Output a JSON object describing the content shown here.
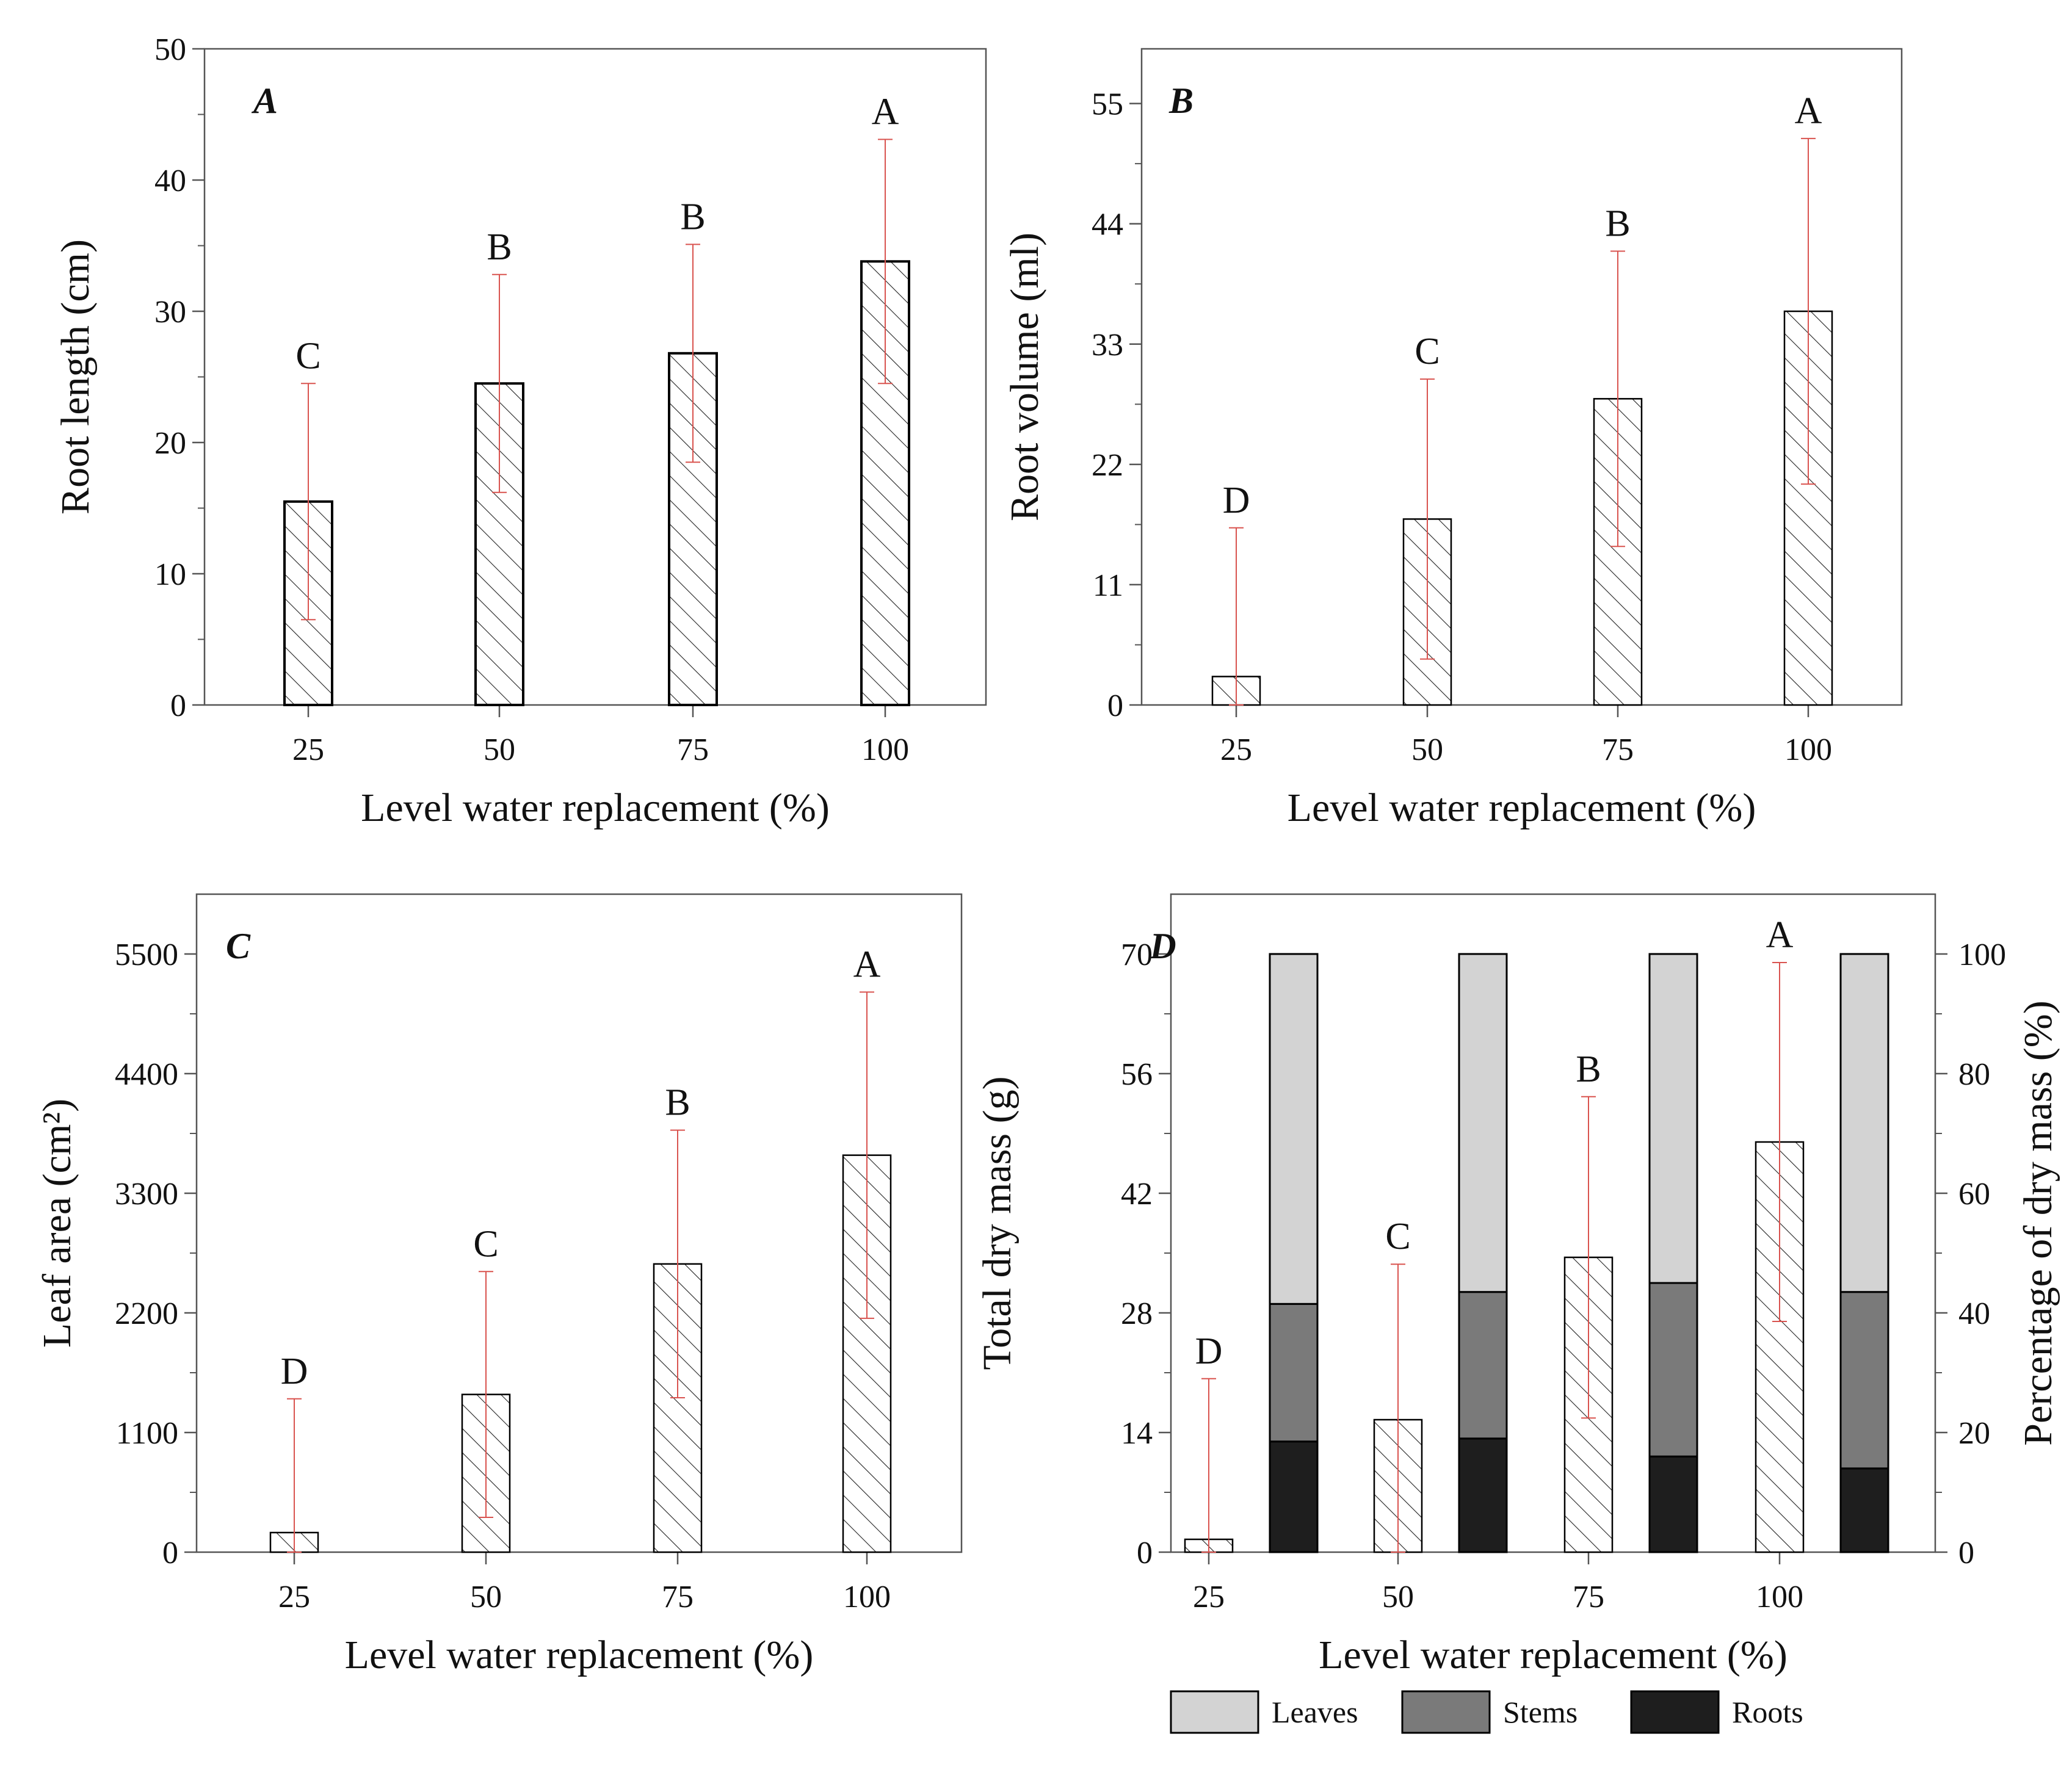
{
  "colors": {
    "error_bar": "#d9534f",
    "axis": "#555555",
    "bar_edge": "#000000",
    "leaves": "#d3d3d3",
    "stems": "#7a7a7a",
    "roots": "#1e1e1e"
  },
  "chart_data": [
    {
      "id": "A",
      "type": "bar",
      "panel_label": "A",
      "categories": [
        "25",
        "50",
        "75",
        "100"
      ],
      "xlabel": "Level water replacement (%)",
      "ylabel": "Root length (cm)",
      "ylim": [
        0,
        50
      ],
      "yticks": [
        0,
        10,
        20,
        30,
        40,
        50
      ],
      "values": [
        15.5,
        24.5,
        26.8,
        33.8
      ],
      "errors": [
        9.0,
        8.3,
        8.3,
        9.3
      ],
      "significance": [
        "C",
        "B",
        "B",
        "A"
      ]
    },
    {
      "id": "B",
      "type": "bar",
      "panel_label": "B",
      "categories": [
        "25",
        "50",
        "75",
        "100"
      ],
      "xlabel": "Level water replacement (%)",
      "ylabel": "Root volume (ml)",
      "ylim": [
        0,
        60
      ],
      "yticks": [
        0,
        11,
        22,
        33,
        44,
        55
      ],
      "values": [
        2.6,
        17.0,
        28.0,
        36.0
      ],
      "errors": [
        13.6,
        12.8,
        13.5,
        15.8
      ],
      "significance": [
        "D",
        "C",
        "B",
        "A"
      ]
    },
    {
      "id": "C",
      "type": "bar",
      "panel_label": "C",
      "categories": [
        "25",
        "50",
        "75",
        "100"
      ],
      "xlabel": "Level water replacement (%)",
      "ylabel": "Leaf area (cm²)",
      "ylim": [
        0,
        6050
      ],
      "yticks": [
        0,
        1100,
        2200,
        3300,
        4400,
        5500
      ],
      "values": [
        180,
        1450,
        2650,
        3650
      ],
      "errors": [
        1230,
        1130,
        1230,
        1500
      ],
      "significance": [
        "D",
        "C",
        "B",
        "A"
      ]
    },
    {
      "id": "D",
      "type": "bar",
      "panel_label": "D",
      "categories": [
        "25",
        "50",
        "75",
        "100"
      ],
      "xlabel": "Level water replacement (%)",
      "ylabel": "Total dry mass (g)",
      "ylabel_right": "Percentage of dry mass (%)",
      "ylim": [
        0,
        77
      ],
      "yticks": [
        0,
        14,
        28,
        42,
        56,
        70
      ],
      "ylim_right": [
        0,
        110
      ],
      "yticks_right": [
        0,
        20,
        40,
        60,
        80,
        100
      ],
      "values": [
        1.5,
        15.5,
        34.5,
        48.0
      ],
      "errors": [
        18.8,
        18.2,
        18.8,
        21.0
      ],
      "significance": [
        "D",
        "C",
        "B",
        "A"
      ],
      "stacked_percent": {
        "series": [
          {
            "name": "Roots",
            "values": [
              18.5,
              19.0,
              16.0,
              14.0
            ]
          },
          {
            "name": "Stems",
            "values": [
              23.0,
              24.5,
              29.0,
              29.5
            ]
          },
          {
            "name": "Leaves",
            "values": [
              58.5,
              56.5,
              55.0,
              56.5
            ]
          }
        ]
      },
      "legend": [
        "Leaves",
        "Stems",
        "Roots"
      ]
    }
  ]
}
